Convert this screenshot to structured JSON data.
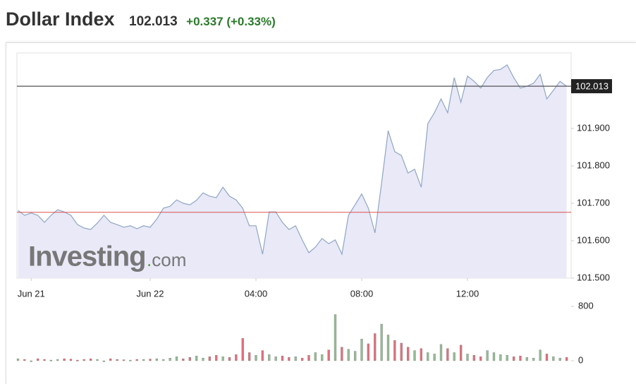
{
  "header": {
    "title": "Dollar Index",
    "change": "+0.337 (+0.33%)"
  },
  "chart_data": {
    "type": "line",
    "current_price": 102.013,
    "previous_close": 101.676,
    "watermark": {
      "brand": "Investing",
      "suffix": ".com"
    },
    "x": [
      -5,
      -4.75,
      -4.5,
      -4.25,
      -4,
      -3.75,
      -3.5,
      -3.25,
      -3,
      -2.75,
      -2.5,
      -2.25,
      -2,
      -1.75,
      -1.5,
      -1.25,
      -1,
      -0.75,
      -0.5,
      -0.25,
      0,
      0.25,
      0.5,
      0.75,
      1,
      1.25,
      1.5,
      1.75,
      2,
      2.25,
      2.5,
      2.75,
      3,
      3.25,
      3.5,
      3.75,
      4,
      4.25,
      4.5,
      4.75,
      5,
      5.25,
      5.5,
      5.75,
      6,
      6.25,
      6.5,
      6.75,
      7,
      7.25,
      7.5,
      7.75,
      8,
      8.25,
      8.5,
      8.75,
      9,
      9.25,
      9.5,
      9.75,
      10,
      10.25,
      10.5,
      10.75,
      11,
      11.25,
      11.5,
      11.75,
      12,
      12.25,
      12.5,
      12.75,
      13,
      13.25,
      13.5,
      13.75,
      14,
      14.25,
      14.5,
      14.75,
      15,
      15.25,
      15.5,
      15.75
    ],
    "series": [
      {
        "name": "Dollar Index",
        "color": "#8fa6c4",
        "fill": "#e9e9f8",
        "values": [
          101.681,
          101.668,
          101.674,
          101.668,
          101.649,
          101.668,
          101.683,
          101.677,
          101.668,
          101.643,
          101.634,
          101.63,
          101.647,
          101.668,
          101.649,
          101.643,
          101.636,
          101.64,
          101.632,
          101.64,
          101.636,
          101.658,
          101.687,
          101.692,
          101.709,
          101.7,
          101.696,
          101.708,
          101.728,
          101.719,
          101.715,
          101.743,
          101.719,
          101.709,
          101.687,
          101.64,
          101.64,
          101.564,
          101.677,
          101.677,
          101.649,
          101.63,
          101.64,
          101.602,
          101.568,
          101.583,
          101.606,
          101.592,
          101.602,
          101.564,
          101.668,
          101.696,
          101.725,
          101.687,
          101.621,
          101.753,
          101.894,
          101.838,
          101.828,
          101.781,
          101.791,
          101.743,
          101.913,
          101.942,
          101.979,
          101.942,
          102.036,
          101.97,
          102.04,
          102.026,
          102.008,
          102.036,
          102.055,
          102.058,
          102.07,
          102.036,
          102.008,
          102.013,
          102.021,
          102.045,
          101.979,
          102.002,
          102.026,
          102.013
        ]
      }
    ],
    "xlim": [
      -5.04,
      15.92
    ],
    "xticks": [
      {
        "value": -4.5,
        "label": "Jun 21"
      },
      {
        "value": 0,
        "label": "Jun 22"
      },
      {
        "value": 4,
        "label": "04:00"
      },
      {
        "value": 8,
        "label": "08:00"
      },
      {
        "value": 12,
        "label": "12:00"
      }
    ],
    "ylim": [
      101.5,
      102.1
    ],
    "yticks": [
      {
        "value": 101.5,
        "label": "101.500"
      },
      {
        "value": 101.6,
        "label": "101.600"
      },
      {
        "value": 101.7,
        "label": "101.700"
      },
      {
        "value": 101.8,
        "label": "101.800"
      },
      {
        "value": 101.9,
        "label": "101.900"
      }
    ],
    "current_color": "#555555",
    "previous_close_color": "#d9534f",
    "volume": {
      "up_color": "#96bb96",
      "down_color": "#e0707c",
      "ylim": [
        0,
        800
      ],
      "yticks": [
        0,
        800
      ],
      "values": [
        30,
        20,
        0,
        30,
        20,
        10,
        20,
        30,
        25,
        10,
        20,
        30,
        20,
        0,
        30,
        20,
        15,
        10,
        20,
        20,
        25,
        30,
        20,
        40,
        60,
        30,
        50,
        70,
        40,
        60,
        80,
        60,
        50,
        90,
        330,
        120,
        80,
        150,
        90,
        60,
        70,
        50,
        60,
        40,
        80,
        120,
        90,
        160,
        680,
        200,
        170,
        140,
        320,
        250,
        400,
        540,
        380,
        300,
        260,
        200,
        150,
        180,
        120,
        100,
        240,
        180,
        120,
        230,
        100,
        80,
        60,
        150,
        120,
        90,
        80,
        60,
        70,
        50,
        40,
        160,
        100,
        60,
        40,
        50
      ]
    }
  }
}
